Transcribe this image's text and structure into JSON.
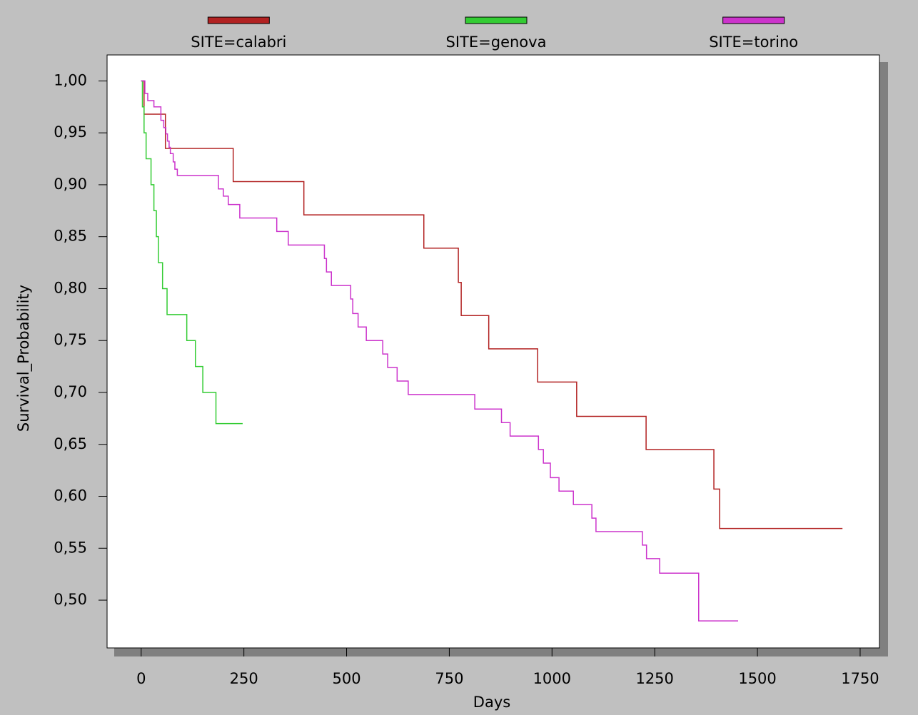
{
  "chart_data": {
    "type": "step",
    "xlabel": "Days",
    "ylabel": "Survival_Probability",
    "xlim": [
      -83,
      1797
    ],
    "ylim": [
      0.454,
      1.025
    ],
    "xticks": [
      0,
      250,
      500,
      750,
      1000,
      1250,
      1500,
      1750
    ],
    "yticks": [
      {
        "value": 0.5,
        "label": "0,50"
      },
      {
        "value": 0.55,
        "label": "0,55"
      },
      {
        "value": 0.6,
        "label": "0,60"
      },
      {
        "value": 0.65,
        "label": "0,65"
      },
      {
        "value": 0.7,
        "label": "0,70"
      },
      {
        "value": 0.75,
        "label": "0,75"
      },
      {
        "value": 0.8,
        "label": "0,80"
      },
      {
        "value": 0.85,
        "label": "0,85"
      },
      {
        "value": 0.9,
        "label": "0,90"
      },
      {
        "value": 0.95,
        "label": "0,95"
      },
      {
        "value": 1.0,
        "label": "1,00"
      }
    ],
    "legend": "top",
    "series": [
      {
        "name": "SITE=calabri",
        "color": "#b22222",
        "x": [
          0,
          7,
          59,
          224,
          396,
          688,
          772,
          779,
          846,
          965,
          1060,
          1229,
          1394,
          1408,
          1707
        ],
        "values": [
          1.0,
          0.968,
          0.935,
          0.903,
          0.871,
          0.839,
          0.806,
          0.774,
          0.742,
          0.71,
          0.677,
          0.645,
          0.607,
          0.569,
          0.569
        ]
      },
      {
        "name": "SITE=genova",
        "color": "#33cc33",
        "x": [
          0,
          3,
          7,
          12,
          24,
          31,
          37,
          42,
          52,
          63,
          111,
          132,
          150,
          182,
          247
        ],
        "values": [
          1.0,
          0.975,
          0.95,
          0.925,
          0.9,
          0.875,
          0.85,
          0.825,
          0.8,
          0.775,
          0.75,
          0.725,
          0.7,
          0.67,
          0.67
        ]
      },
      {
        "name": "SITE=torino",
        "color": "#cc33cc",
        "x": [
          0,
          9,
          16,
          31,
          48,
          55,
          60,
          64,
          68,
          71,
          78,
          82,
          88,
          188,
          200,
          212,
          240,
          330,
          358,
          446,
          451,
          463,
          510,
          515,
          528,
          548,
          588,
          600,
          623,
          650,
          812,
          877,
          898,
          967,
          979,
          996,
          1017,
          1052,
          1097,
          1107,
          1220,
          1230,
          1262,
          1357,
          1453
        ],
        "values": [
          1.0,
          0.988,
          0.981,
          0.975,
          0.962,
          0.955,
          0.949,
          0.942,
          0.936,
          0.93,
          0.922,
          0.915,
          0.909,
          0.896,
          0.889,
          0.881,
          0.868,
          0.855,
          0.842,
          0.829,
          0.816,
          0.803,
          0.79,
          0.776,
          0.763,
          0.75,
          0.737,
          0.724,
          0.711,
          0.698,
          0.684,
          0.671,
          0.658,
          0.645,
          0.632,
          0.618,
          0.605,
          0.592,
          0.579,
          0.566,
          0.553,
          0.54,
          0.526,
          0.48,
          0.48
        ]
      }
    ]
  }
}
